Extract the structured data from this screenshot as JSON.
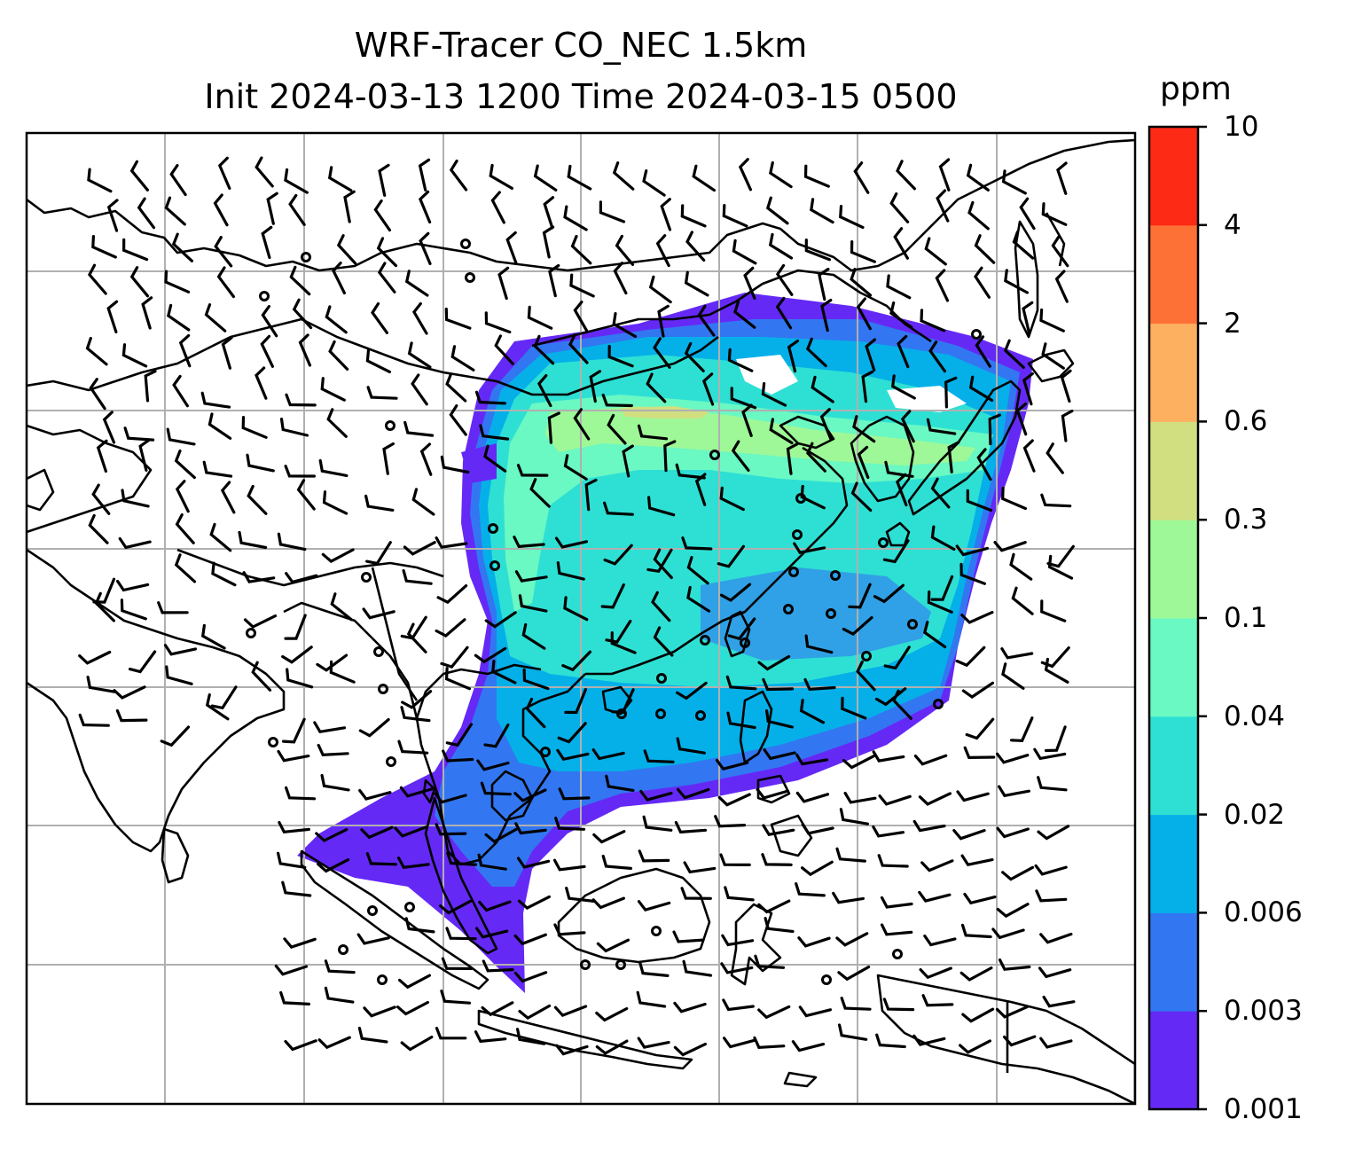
{
  "title": {
    "line1": "WRF-Tracer CO_NEC 1.5km",
    "line2": "Init 2024-03-13 1200 Time 2024-03-15 0500"
  },
  "colorbar": {
    "unit": "ppm",
    "levels": [
      "0.001",
      "0.003",
      "0.006",
      "0.02",
      "0.04",
      "0.1",
      "0.3",
      "0.6",
      "2",
      "4",
      "10"
    ],
    "colors": [
      "#6529f6",
      "#3277f1",
      "#05b0e9",
      "#2ee0d4",
      "#6af8c3",
      "#9ef897",
      "#d1df81",
      "#fdb160",
      "#fe7136",
      "#fd2a16"
    ]
  },
  "colors": {
    "gridline": "#b0b0b0",
    "coastline": "#000000",
    "background": "#ffffff"
  },
  "map_features": {
    "gridlines": true,
    "coastlines": true,
    "wind_barbs": true,
    "calm_wind_circles": true,
    "shaded_field": "CO tracer concentration"
  }
}
